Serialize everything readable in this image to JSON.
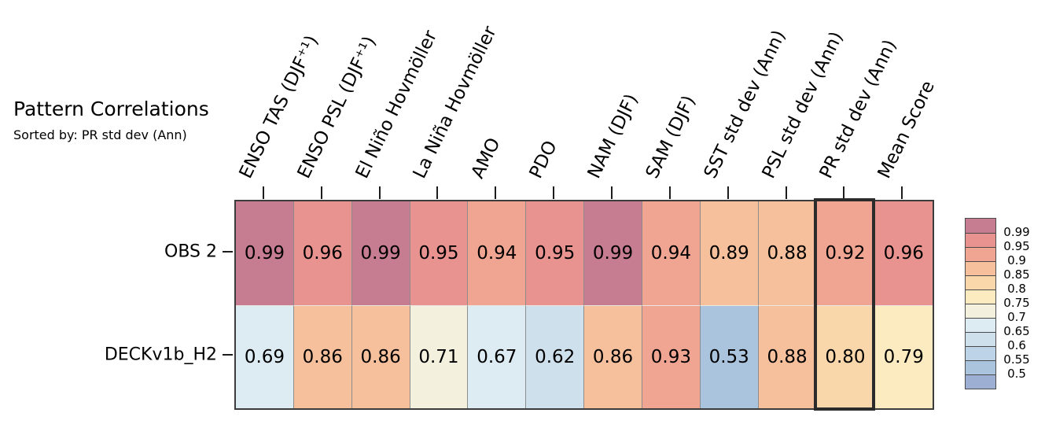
{
  "title": "Pattern Correlations",
  "subtitle": "Sorted by: PR std dev (Ann)",
  "chart_data": {
    "type": "heatmap",
    "title": "Pattern Correlations",
    "subtitle": "Sorted by: PR std dev (Ann)",
    "columns": [
      "ENSO TAS (DJF⁺¹)",
      "ENSO PSL (DJF⁺¹)",
      "El Niño Hovmöller",
      "La Niña Hovmöller",
      "AMO",
      "PDO",
      "NAM (DJF)",
      "SAM (DJF)",
      "SST std dev (Ann)",
      "PSL std dev (Ann)",
      "PR std dev (Ann)",
      "Mean Score"
    ],
    "rows": [
      "OBS 2",
      "DECKv1b_H2"
    ],
    "series": [
      {
        "name": "OBS 2",
        "values": [
          0.99,
          0.96,
          0.99,
          0.95,
          0.94,
          0.95,
          0.99,
          0.94,
          0.89,
          0.88,
          0.92,
          0.96
        ]
      },
      {
        "name": "DECKv1b_H2",
        "values": [
          0.69,
          0.86,
          0.86,
          0.71,
          0.67,
          0.62,
          0.86,
          0.93,
          0.53,
          0.88,
          0.8,
          0.79
        ]
      }
    ],
    "value_decimals": 2,
    "highlighted_column": "PR std dev (Ann)",
    "highlighted_column_index": 10,
    "grid": true,
    "legend_position": "right",
    "colorbar": {
      "tick_labels": [
        "0.99",
        "0.95",
        "0.9",
        "0.85",
        "0.8",
        "0.75",
        "0.7",
        "0.65",
        "0.6",
        "0.55",
        "0.5"
      ],
      "bin_edges_descending": [
        0.99,
        0.95,
        0.9,
        0.85,
        0.8,
        0.75,
        0.7,
        0.65,
        0.6,
        0.55,
        0.5
      ],
      "bin_colors_top_to_bottom": [
        "#c77d91",
        "#e8938f",
        "#f0a592",
        "#f7c09c",
        "#fad7ab",
        "#fcebc1",
        "#f3f1de",
        "#ddebf3",
        "#cfe0ed",
        "#bdd3e7",
        "#abc4de",
        "#9db0d4"
      ]
    }
  }
}
